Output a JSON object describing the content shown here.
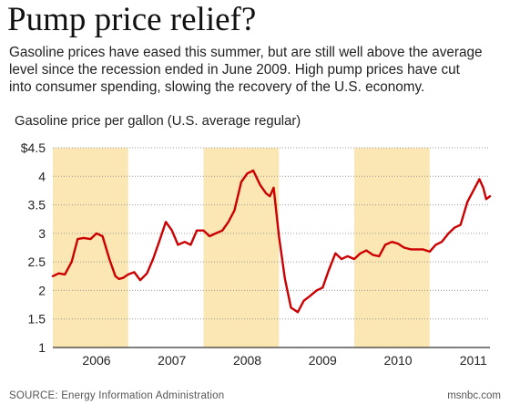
{
  "header": {
    "title": "Pump price relief?",
    "subtitle": "Gasoline prices have eased this summer, but are still well above the average\nlevel since the recession ended in June 2009.  High pump prices have cut\ninto consumer spending, slowing the recovery of the U.S. economy."
  },
  "footer": {
    "source": "SOURCE: Energy Information Administration",
    "credit": "msnbc.com"
  },
  "chart_data": {
    "type": "line",
    "title": "Pump price relief?",
    "ylabel": "Gasoline price per gallon (U.S. average regular)",
    "xlabel": "",
    "ylim": [
      1,
      4.5
    ],
    "xlim": [
      2005.67,
      2011.47
    ],
    "yticks": [
      {
        "value": 4.5,
        "label": "$4.5"
      },
      {
        "value": 4,
        "label": "4"
      },
      {
        "value": 3.5,
        "label": "3.5"
      },
      {
        "value": 3,
        "label": "3"
      },
      {
        "value": 2.5,
        "label": "2.5"
      },
      {
        "value": 2,
        "label": "2"
      },
      {
        "value": 1.5,
        "label": "1.5"
      },
      {
        "value": 1,
        "label": "1"
      }
    ],
    "xticks": [
      {
        "value": 2006.25,
        "label": "2006"
      },
      {
        "value": 2007.25,
        "label": "2007"
      },
      {
        "value": 2008.25,
        "label": "2008"
      },
      {
        "value": 2009.25,
        "label": "2009"
      },
      {
        "value": 2010.25,
        "label": "2010"
      },
      {
        "value": 2011.25,
        "label": "2011"
      }
    ],
    "grid": true,
    "shaded_bands": [
      [
        2005.67,
        2006.67
      ],
      [
        2007.67,
        2008.67
      ],
      [
        2009.67,
        2010.67
      ]
    ],
    "colors": {
      "line": "#cc0000",
      "band": "#fbe7b3",
      "grid": "#999999",
      "axis": "#333333"
    },
    "series": [
      {
        "x": [
          2005.67,
          2005.75,
          2005.83,
          2005.92,
          2006.0,
          2006.08,
          2006.17,
          2006.25,
          2006.33,
          2006.42,
          2006.5,
          2006.55,
          2006.6,
          2006.67,
          2006.75,
          2006.83,
          2006.92,
          2007.0,
          2007.08,
          2007.17,
          2007.25,
          2007.33,
          2007.42,
          2007.5,
          2007.58,
          2007.67,
          2007.75,
          2007.83,
          2007.92,
          2008.0,
          2008.08,
          2008.17,
          2008.25,
          2008.33,
          2008.42,
          2008.5,
          2008.55,
          2008.6,
          2008.67,
          2008.75,
          2008.83,
          2008.92,
          2009.0,
          2009.08,
          2009.17,
          2009.25,
          2009.33,
          2009.42,
          2009.5,
          2009.58,
          2009.67,
          2009.75,
          2009.83,
          2009.92,
          2010.0,
          2010.08,
          2010.17,
          2010.25,
          2010.33,
          2010.42,
          2010.5,
          2010.58,
          2010.67,
          2010.75,
          2010.83,
          2010.92,
          2011.0,
          2011.08,
          2011.17,
          2011.25,
          2011.33,
          2011.38,
          2011.42,
          2011.47
        ],
        "y": [
          2.25,
          2.3,
          2.28,
          2.5,
          2.9,
          2.92,
          2.9,
          3.0,
          2.95,
          2.55,
          2.25,
          2.2,
          2.22,
          2.28,
          2.32,
          2.18,
          2.3,
          2.55,
          2.85,
          3.2,
          3.05,
          2.8,
          2.85,
          2.8,
          3.05,
          3.05,
          2.95,
          3.0,
          3.05,
          3.2,
          3.4,
          3.9,
          4.05,
          4.1,
          3.85,
          3.7,
          3.65,
          3.8,
          2.95,
          2.2,
          1.7,
          1.62,
          1.82,
          1.9,
          2.0,
          2.05,
          2.35,
          2.65,
          2.55,
          2.6,
          2.55,
          2.65,
          2.7,
          2.62,
          2.6,
          2.8,
          2.85,
          2.82,
          2.75,
          2.72,
          2.72,
          2.72,
          2.68,
          2.8,
          2.85,
          3.0,
          3.1,
          3.15,
          3.55,
          3.75,
          3.95,
          3.8,
          3.6,
          3.65
        ]
      }
    ]
  }
}
